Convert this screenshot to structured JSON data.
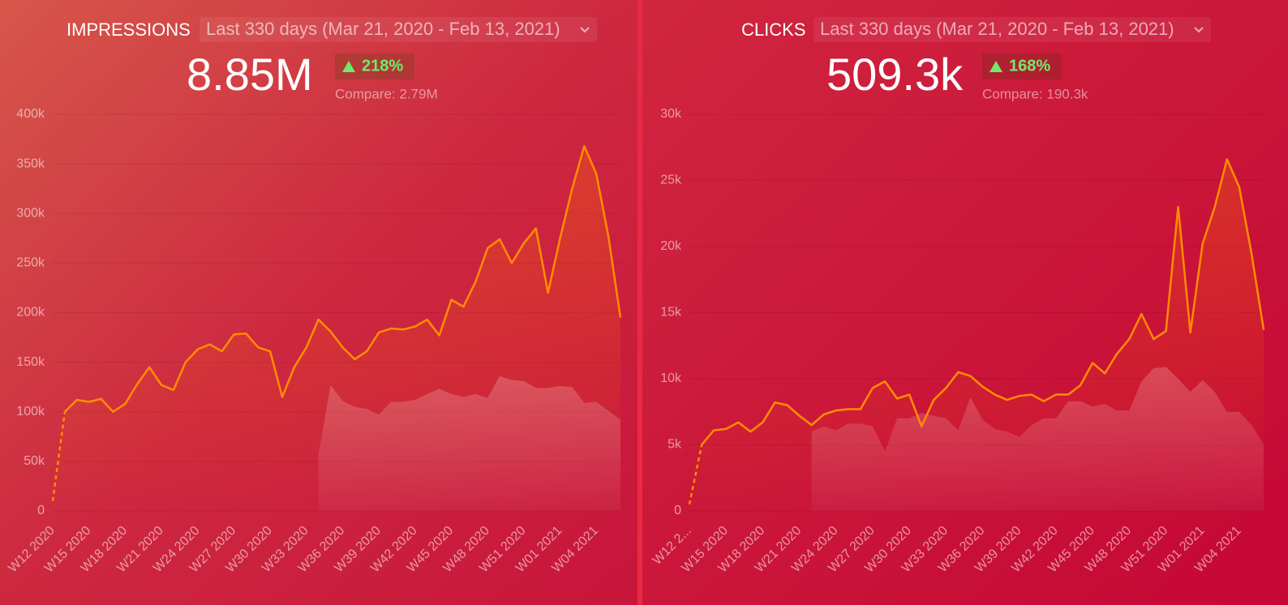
{
  "chart_data": [
    {
      "type": "line",
      "title": "IMPRESSIONS",
      "period": "Last 330 days (Mar 21, 2020 - Feb 13, 2021)",
      "total": "8.85M",
      "change": "218%",
      "compare": "Compare: 2.79M",
      "categories": [
        "W12 2020",
        null,
        null,
        "W15 2020",
        null,
        null,
        "W18 2020",
        null,
        null,
        "W21 2020",
        null,
        null,
        "W24 2020",
        null,
        null,
        "W27 2020",
        null,
        null,
        "W30 2020",
        null,
        null,
        "W33 2020",
        null,
        null,
        "W36 2020",
        null,
        null,
        "W39 2020",
        null,
        null,
        "W42 2020",
        null,
        null,
        "W45 2020",
        null,
        null,
        "W48 2020",
        null,
        null,
        "W51 2020",
        null,
        null,
        "W01 2021",
        null,
        null,
        "W04 2021",
        null,
        null
      ],
      "series": [
        {
          "color": "#ff8c00",
          "values": [
            10000,
            100000,
            112000,
            110000,
            113000,
            100000,
            108000,
            128000,
            145000,
            127000,
            122000,
            150000,
            163000,
            168000,
            161000,
            178000,
            179000,
            165000,
            161000,
            115000,
            145000,
            165000,
            193000,
            181000,
            165000,
            153000,
            161000,
            180000,
            184000,
            183000,
            186000,
            193000,
            177000,
            213000,
            206000,
            231000,
            265000,
            274000,
            250000,
            270000,
            285000,
            220000,
            275000,
            325000,
            368000,
            340000,
            277000,
            195000
          ]
        },
        {
          "color": "#ffffff",
          "values": [
            null,
            null,
            null,
            null,
            null,
            null,
            null,
            null,
            null,
            null,
            null,
            null,
            null,
            null,
            null,
            null,
            null,
            null,
            null,
            null,
            null,
            null,
            57000,
            127000,
            111000,
            105000,
            103000,
            97000,
            110000,
            110000,
            112000,
            118000,
            123000,
            118000,
            115000,
            118000,
            114000,
            136000,
            132000,
            131000,
            124000,
            124000,
            126000,
            125000,
            109000,
            110000,
            101000,
            92000
          ]
        }
      ],
      "ylim": [
        0,
        400000
      ],
      "yticks": [
        0,
        {
          "value": 50000,
          "label": "50k"
        },
        {
          "value": 100000,
          "label": "100k"
        },
        {
          "value": 150000,
          "label": "150k"
        },
        {
          "value": 200000,
          "label": "200k"
        },
        {
          "value": 250000,
          "label": "250k"
        },
        {
          "value": 300000,
          "label": "300k"
        },
        {
          "value": 350000,
          "label": "350k"
        },
        {
          "value": 400000,
          "label": "400k"
        }
      ],
      "grid": true
    },
    {
      "type": "line",
      "title": "CLICKS",
      "period": "Last 330 days (Mar 21, 2020 - Feb 13, 2021)",
      "total": "509.3k",
      "change": "168%",
      "compare": "Compare: 190.3k",
      "categories": [
        "W12 2...",
        null,
        null,
        "W15 2020",
        null,
        null,
        "W18 2020",
        null,
        null,
        "W21 2020",
        null,
        null,
        "W24 2020",
        null,
        null,
        "W27 2020",
        null,
        null,
        "W30 2020",
        null,
        null,
        "W33 2020",
        null,
        null,
        "W36 2020",
        null,
        null,
        "W39 2020",
        null,
        null,
        "W42 2020",
        null,
        null,
        "W45 2020",
        null,
        null,
        "W48 2020",
        null,
        null,
        "W51 2020",
        null,
        null,
        "W01 2021",
        null,
        null,
        "W04 2021",
        null,
        null
      ],
      "series": [
        {
          "color": "#ff8c00",
          "values": [
            500,
            5000,
            6100,
            6200,
            6700,
            6000,
            6700,
            8200,
            8000,
            7200,
            6500,
            7300,
            7600,
            7700,
            7700,
            9300,
            9800,
            8500,
            8800,
            6400,
            8400,
            9300,
            10500,
            10200,
            9400,
            8800,
            8400,
            8700,
            8800,
            8300,
            8800,
            8800,
            9500,
            11200,
            10400,
            11900,
            13000,
            14900,
            13000,
            13600,
            23000,
            13500,
            20200,
            23000,
            26600,
            24500,
            19500,
            13700
          ]
        },
        {
          "color": "#ffffff",
          "values": [
            null,
            null,
            null,
            null,
            null,
            null,
            null,
            null,
            null,
            null,
            6000,
            6400,
            6100,
            6600,
            6600,
            6400,
            4500,
            7000,
            7000,
            7400,
            7200,
            7000,
            6100,
            8600,
            6900,
            6200,
            6000,
            5600,
            6500,
            7000,
            7000,
            8300,
            8300,
            7900,
            8100,
            7600,
            7600,
            9800,
            10800,
            10900,
            10000,
            9000,
            9900,
            9000,
            7500,
            7500,
            6500,
            5000
          ]
        }
      ],
      "ylim": [
        0,
        30000
      ],
      "yticks": [
        0,
        {
          "value": 5000,
          "label": "5k"
        },
        {
          "value": 10000,
          "label": "10k"
        },
        {
          "value": 15000,
          "label": "15k"
        },
        {
          "value": 20000,
          "label": "20k"
        },
        {
          "value": 25000,
          "label": "25k"
        },
        {
          "value": 30000,
          "label": "30k"
        }
      ],
      "grid": true
    }
  ]
}
